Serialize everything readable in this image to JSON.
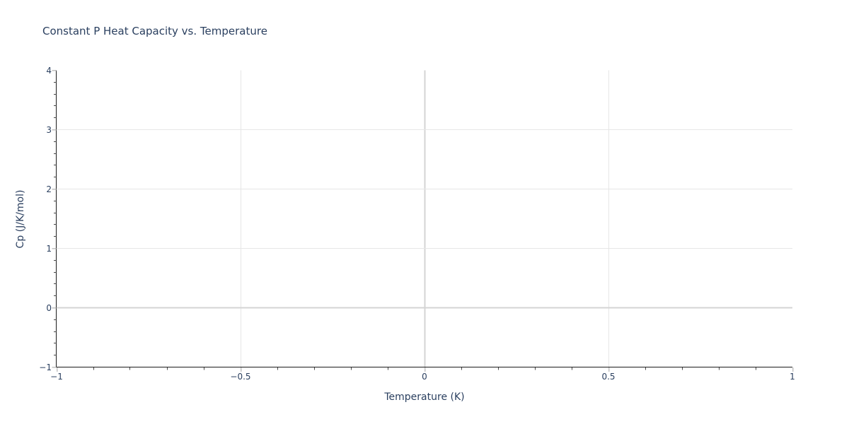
{
  "chart_data": {
    "type": "line",
    "title": "Constant P Heat Capacity vs. Temperature",
    "xlabel": "Temperature (K)",
    "ylabel": "Cp (J/K/mol)",
    "xlim": [
      -1,
      1
    ],
    "ylim": [
      -1,
      4
    ],
    "x_major_ticks": [
      -1,
      -0.5,
      0,
      0.5,
      1
    ],
    "x_tick_labels": [
      "−1",
      "−0.5",
      "0",
      "0.5",
      "1"
    ],
    "x_minor_tick_step": 0.1,
    "y_major_ticks": [
      -1,
      0,
      1,
      2,
      3,
      4
    ],
    "y_tick_labels": [
      "−1",
      "0",
      "1",
      "2",
      "3",
      "4"
    ],
    "y_minor_tick_step": 0.2,
    "grid": true,
    "zerolines": true,
    "legend": false,
    "series": []
  },
  "colors": {
    "background": "#ffffff",
    "text": "#2a3f5f",
    "grid": "#e6e6e6",
    "zeroline": "#d4d4d4",
    "axis_line": "#1c1c1c",
    "major_tick": "#c2c2c2",
    "minor_tick": "#4a4a4a"
  }
}
